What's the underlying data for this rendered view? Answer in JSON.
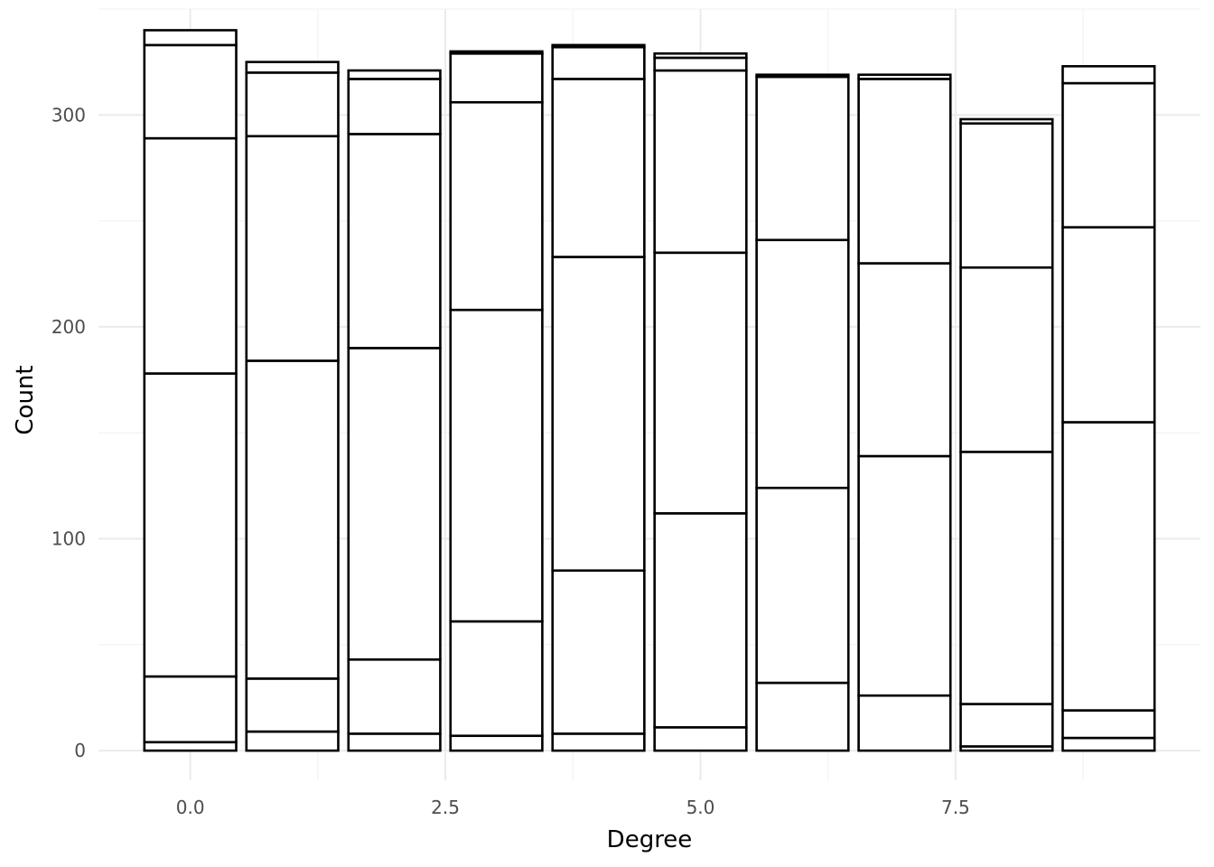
{
  "chart_data": {
    "type": "bar",
    "stacked": true,
    "title": "",
    "xlabel": "Degree",
    "ylabel": "Count",
    "x": [
      0,
      1,
      2,
      3,
      4,
      5,
      6,
      7,
      8,
      9
    ],
    "xlim": [
      -0.9,
      9.9
    ],
    "ylim": [
      -14,
      350
    ],
    "x_ticks": [
      0.0,
      2.5,
      5.0,
      7.5
    ],
    "x_tick_labels": [
      "0.0",
      "2.5",
      "5.0",
      "7.5"
    ],
    "y_ticks": [
      0,
      100,
      200,
      300
    ],
    "y_tick_labels": [
      "0",
      "100",
      "200",
      "300"
    ],
    "grid": true,
    "bar_fill": "#ffffff",
    "bar_stroke": "#000000",
    "stack_boundaries": [
      [
        0,
        4,
        35,
        178,
        289,
        333,
        340
      ],
      [
        0,
        9,
        34,
        184,
        290,
        320,
        325
      ],
      [
        0,
        8,
        43,
        190,
        291,
        317,
        321
      ],
      [
        0,
        7,
        61,
        208,
        306,
        329,
        330
      ],
      [
        0,
        8,
        85,
        233,
        317,
        332,
        333
      ],
      [
        0,
        11,
        112,
        235,
        321,
        327,
        329
      ],
      [
        0,
        32,
        124,
        241,
        318,
        319
      ],
      [
        0,
        26,
        139,
        230,
        317,
        319
      ],
      [
        0,
        2,
        22,
        141,
        228,
        296,
        298
      ],
      [
        0,
        6,
        19,
        155,
        247,
        315,
        323
      ]
    ]
  }
}
